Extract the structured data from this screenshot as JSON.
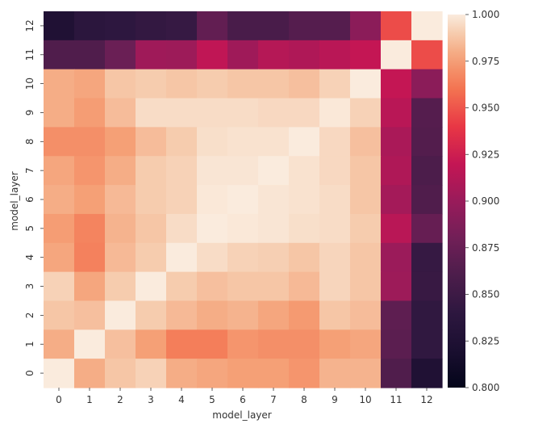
{
  "chart_data": {
    "type": "heatmap",
    "xlabel": "model_layer",
    "ylabel": "model_layer",
    "x_ticks": [
      "0",
      "1",
      "2",
      "3",
      "4",
      "5",
      "6",
      "7",
      "8",
      "9",
      "10",
      "11",
      "12"
    ],
    "y_ticks": [
      "0",
      "1",
      "2",
      "3",
      "4",
      "5",
      "6",
      "7",
      "8",
      "9",
      "10",
      "11",
      "12"
    ],
    "colorbar": {
      "range": [
        0.8,
        1.0
      ],
      "ticks": [
        "0.800",
        "0.825",
        "0.850",
        "0.875",
        "0.900",
        "0.925",
        "0.950",
        "0.975",
        "1.000"
      ],
      "colormap": "rocket"
    },
    "rows_order": "top-to-bottom = layer 12 down to layer 0",
    "rows": [
      {
        "layer": "12",
        "values": [
          0.826,
          0.838,
          0.84,
          0.844,
          0.846,
          0.872,
          0.858,
          0.858,
          0.865,
          0.865,
          0.893,
          0.947,
          1.0
        ]
      },
      {
        "layer": "11",
        "values": [
          0.862,
          0.862,
          0.876,
          0.903,
          0.902,
          0.918,
          0.903,
          0.913,
          0.91,
          0.915,
          0.92,
          1.0,
          0.947
        ]
      },
      {
        "layer": "10",
        "values": [
          0.98,
          0.978,
          0.988,
          0.99,
          0.988,
          0.99,
          0.988,
          0.988,
          0.986,
          0.992,
          1.0,
          0.92,
          0.893
        ]
      },
      {
        "layer": "9",
        "values": [
          0.98,
          0.975,
          0.985,
          0.995,
          0.995,
          0.995,
          0.995,
          0.994,
          0.994,
          0.999,
          0.992,
          0.915,
          0.865
        ]
      },
      {
        "layer": "8",
        "values": [
          0.97,
          0.97,
          0.976,
          0.985,
          0.99,
          0.996,
          0.997,
          0.997,
          1.0,
          0.994,
          0.986,
          0.908,
          0.864
        ]
      },
      {
        "layer": "7",
        "values": [
          0.978,
          0.972,
          0.98,
          0.99,
          0.992,
          0.998,
          0.998,
          1.0,
          0.997,
          0.994,
          0.988,
          0.91,
          0.86
        ]
      },
      {
        "layer": "6",
        "values": [
          0.98,
          0.976,
          0.984,
          0.99,
          0.992,
          0.999,
          1.0,
          0.998,
          0.997,
          0.995,
          0.988,
          0.905,
          0.862
        ]
      },
      {
        "layer": "5",
        "values": [
          0.975,
          0.966,
          0.982,
          0.988,
          0.995,
          1.0,
          0.999,
          0.998,
          0.996,
          0.995,
          0.99,
          0.915,
          0.874
        ]
      },
      {
        "layer": "4",
        "values": [
          0.978,
          0.965,
          0.984,
          0.99,
          1.0,
          0.995,
          0.992,
          0.991,
          0.988,
          0.993,
          0.988,
          0.901,
          0.846
        ]
      },
      {
        "layer": "3",
        "values": [
          0.992,
          0.978,
          0.99,
          1.0,
          0.99,
          0.986,
          0.988,
          0.988,
          0.984,
          0.993,
          0.988,
          0.902,
          0.847
        ]
      },
      {
        "layer": "2",
        "values": [
          0.988,
          0.986,
          1.0,
          0.99,
          0.984,
          0.98,
          0.982,
          0.978,
          0.974,
          0.988,
          0.985,
          0.87,
          0.842
        ]
      },
      {
        "layer": "1",
        "values": [
          0.98,
          1.0,
          0.986,
          0.976,
          0.964,
          0.964,
          0.972,
          0.97,
          0.97,
          0.976,
          0.978,
          0.868,
          0.842
        ]
      },
      {
        "layer": "0",
        "values": [
          1.0,
          0.98,
          0.988,
          0.992,
          0.98,
          0.978,
          0.976,
          0.976,
          0.972,
          0.982,
          0.982,
          0.862,
          0.826
        ]
      }
    ],
    "grid": false,
    "legend": "colorbar-right"
  }
}
